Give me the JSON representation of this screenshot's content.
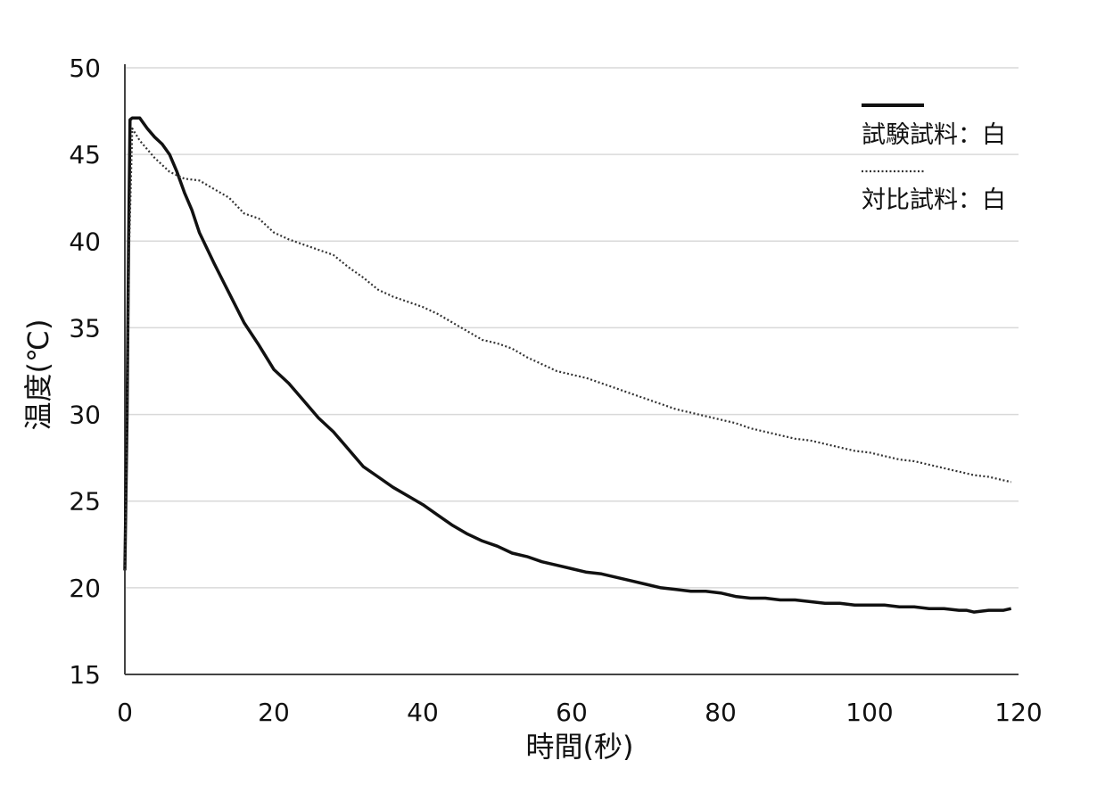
{
  "chart_data": {
    "type": "line",
    "title": "",
    "xlabel": "時間(秒)",
    "ylabel": "温度(℃)",
    "xlim": [
      0,
      120
    ],
    "ylim": [
      15,
      50
    ],
    "xticks": [
      0,
      20,
      40,
      60,
      80,
      100,
      120
    ],
    "yticks": [
      15,
      20,
      25,
      30,
      35,
      40,
      45,
      50
    ],
    "grid": "horizontal",
    "legend_position": "top-right",
    "series": [
      {
        "name": "試験試料：白",
        "style": "solid",
        "color": "#111111",
        "points": [
          [
            0,
            21
          ],
          [
            0.3,
            30
          ],
          [
            0.5,
            40
          ],
          [
            0.7,
            47
          ],
          [
            1,
            47.1
          ],
          [
            2,
            47.1
          ],
          [
            3,
            46.5
          ],
          [
            4,
            46
          ],
          [
            5,
            45.6
          ],
          [
            6,
            45
          ],
          [
            7,
            44
          ],
          [
            8,
            42.8
          ],
          [
            9,
            41.8
          ],
          [
            10,
            40.5
          ],
          [
            12,
            38.7
          ],
          [
            14,
            37
          ],
          [
            16,
            35.3
          ],
          [
            18,
            34
          ],
          [
            20,
            32.6
          ],
          [
            22,
            31.8
          ],
          [
            24,
            30.8
          ],
          [
            26,
            29.8
          ],
          [
            28,
            29
          ],
          [
            30,
            28
          ],
          [
            32,
            27
          ],
          [
            34,
            26.4
          ],
          [
            36,
            25.8
          ],
          [
            38,
            25.3
          ],
          [
            40,
            24.8
          ],
          [
            42,
            24.2
          ],
          [
            44,
            23.6
          ],
          [
            46,
            23.1
          ],
          [
            48,
            22.7
          ],
          [
            50,
            22.4
          ],
          [
            52,
            22
          ],
          [
            54,
            21.8
          ],
          [
            56,
            21.5
          ],
          [
            58,
            21.3
          ],
          [
            60,
            21.1
          ],
          [
            62,
            20.9
          ],
          [
            64,
            20.8
          ],
          [
            66,
            20.6
          ],
          [
            68,
            20.4
          ],
          [
            70,
            20.2
          ],
          [
            72,
            20
          ],
          [
            74,
            19.9
          ],
          [
            76,
            19.8
          ],
          [
            78,
            19.8
          ],
          [
            80,
            19.7
          ],
          [
            82,
            19.5
          ],
          [
            84,
            19.4
          ],
          [
            86,
            19.4
          ],
          [
            88,
            19.3
          ],
          [
            90,
            19.3
          ],
          [
            92,
            19.2
          ],
          [
            94,
            19.1
          ],
          [
            96,
            19.1
          ],
          [
            98,
            19
          ],
          [
            100,
            19
          ],
          [
            102,
            19
          ],
          [
            104,
            18.9
          ],
          [
            106,
            18.9
          ],
          [
            108,
            18.8
          ],
          [
            110,
            18.8
          ],
          [
            112,
            18.7
          ],
          [
            113,
            18.7
          ],
          [
            114,
            18.6
          ],
          [
            116,
            18.7
          ],
          [
            118,
            18.7
          ],
          [
            119,
            18.8
          ]
        ]
      },
      {
        "name": "対比試料：白",
        "style": "dotted",
        "color": "#333333",
        "points": [
          [
            0,
            21
          ],
          [
            0.3,
            30
          ],
          [
            0.6,
            40
          ],
          [
            1,
            46.5
          ],
          [
            2,
            45.8
          ],
          [
            4,
            44.8
          ],
          [
            6,
            44
          ],
          [
            8,
            43.6
          ],
          [
            10,
            43.5
          ],
          [
            12,
            43
          ],
          [
            14,
            42.5
          ],
          [
            16,
            41.6
          ],
          [
            18,
            41.3
          ],
          [
            20,
            40.5
          ],
          [
            22,
            40.1
          ],
          [
            24,
            39.8
          ],
          [
            26,
            39.5
          ],
          [
            28,
            39.2
          ],
          [
            30,
            38.5
          ],
          [
            32,
            37.9
          ],
          [
            34,
            37.2
          ],
          [
            36,
            36.8
          ],
          [
            38,
            36.5
          ],
          [
            40,
            36.2
          ],
          [
            42,
            35.8
          ],
          [
            44,
            35.3
          ],
          [
            46,
            34.8
          ],
          [
            48,
            34.3
          ],
          [
            50,
            34.1
          ],
          [
            52,
            33.8
          ],
          [
            54,
            33.3
          ],
          [
            56,
            32.9
          ],
          [
            58,
            32.5
          ],
          [
            60,
            32.3
          ],
          [
            62,
            32.1
          ],
          [
            64,
            31.8
          ],
          [
            66,
            31.5
          ],
          [
            68,
            31.2
          ],
          [
            70,
            30.9
          ],
          [
            72,
            30.6
          ],
          [
            74,
            30.3
          ],
          [
            76,
            30.1
          ],
          [
            78,
            29.9
          ],
          [
            80,
            29.7
          ],
          [
            82,
            29.5
          ],
          [
            84,
            29.2
          ],
          [
            86,
            29
          ],
          [
            88,
            28.8
          ],
          [
            90,
            28.6
          ],
          [
            92,
            28.5
          ],
          [
            94,
            28.3
          ],
          [
            96,
            28.1
          ],
          [
            98,
            27.9
          ],
          [
            100,
            27.8
          ],
          [
            102,
            27.6
          ],
          [
            104,
            27.4
          ],
          [
            106,
            27.3
          ],
          [
            108,
            27.1
          ],
          [
            110,
            26.9
          ],
          [
            112,
            26.7
          ],
          [
            114,
            26.5
          ],
          [
            116,
            26.4
          ],
          [
            118,
            26.2
          ],
          [
            119,
            26.1
          ]
        ]
      }
    ]
  }
}
